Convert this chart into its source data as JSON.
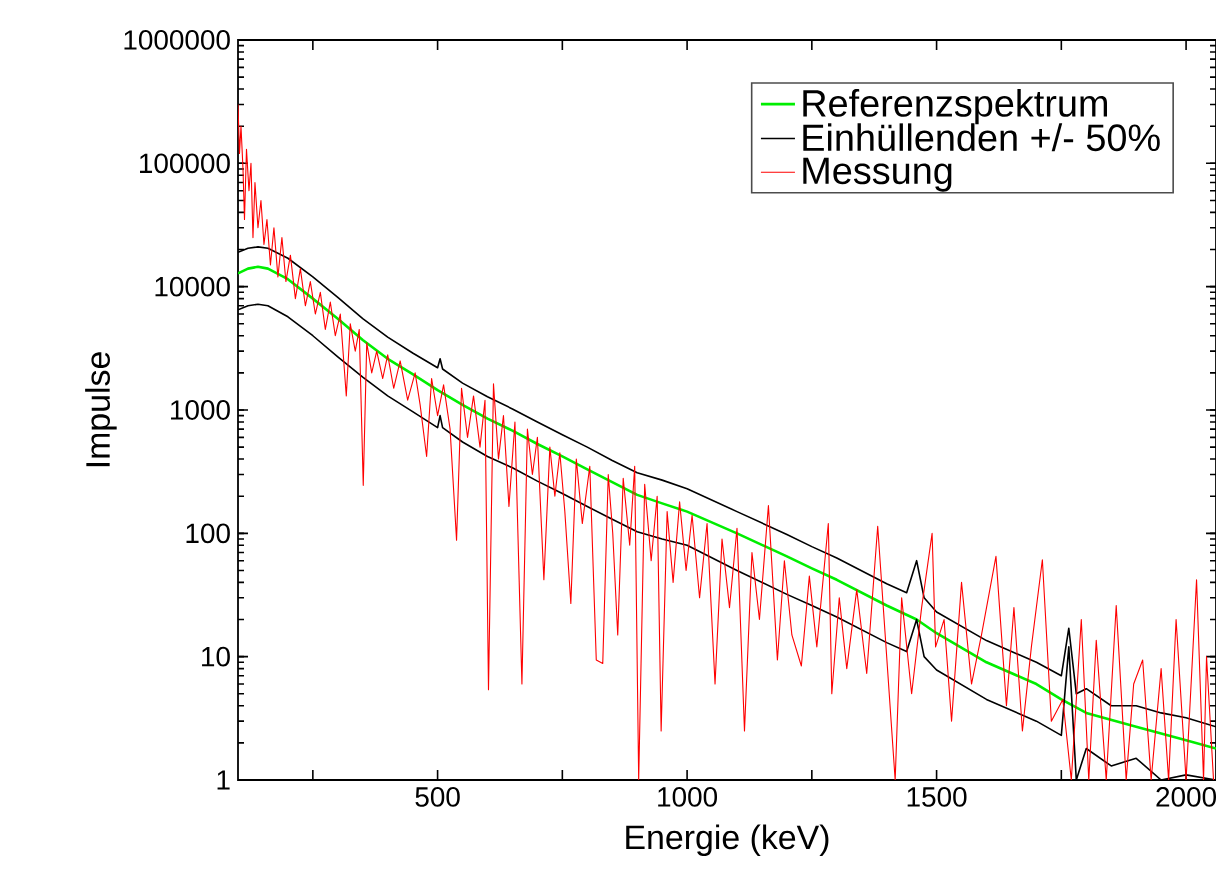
{
  "chart_data": {
    "type": "line",
    "xlabel": "Energie (keV)",
    "ylabel": "Impulse",
    "xlim": [
      100,
      2060
    ],
    "ylim": [
      1,
      1000000
    ],
    "log": "y",
    "legend": "top right",
    "marker": "none",
    "line_style": "solid",
    "xticks": [
      {
        "value": 250,
        "label": null
      },
      500,
      {
        "value": 750,
        "label": null
      },
      1000,
      {
        "value": 1250,
        "label": null
      },
      1500,
      {
        "value": 1750,
        "label": null
      },
      2000
    ],
    "yticks": [
      1,
      10,
      100,
      1000,
      10000,
      100000,
      1000000
    ],
    "series": [
      {
        "name": "Referenzspektrum",
        "color": "#00ee00",
        "x": [
          100,
          120,
          140,
          160,
          200,
          250,
          300,
          350,
          400,
          450,
          500,
          550,
          600,
          650,
          700,
          750,
          800,
          850,
          900,
          950,
          1000,
          1100,
          1200,
          1250,
          1300,
          1400,
          1460,
          1500,
          1600,
          1700,
          1750,
          1800,
          1900,
          2000,
          2060
        ],
        "values": [
          12800,
          14000,
          14500,
          14000,
          11500,
          8000,
          5500,
          3700,
          2600,
          1950,
          1450,
          1100,
          850,
          680,
          530,
          420,
          330,
          260,
          205,
          175,
          150,
          100,
          65,
          52,
          42,
          26,
          20,
          15.5,
          9,
          6,
          4.5,
          3.5,
          2.7,
          2.1,
          1.8
        ]
      },
      {
        "name": "Einhüllenden +/- 50%",
        "color": "#000000",
        "x": [
          100,
          120,
          140,
          160,
          200,
          250,
          300,
          350,
          400,
          450,
          500,
          505,
          510,
          550,
          600,
          650,
          700,
          750,
          800,
          850,
          900,
          950,
          1000,
          1100,
          1200,
          1250,
          1300,
          1400,
          1440,
          1460,
          1475,
          1500,
          1600,
          1700,
          1750,
          1765,
          1780,
          1800,
          1850,
          1900,
          1950,
          2000,
          2060
        ],
        "values": [
          19000,
          20500,
          21000,
          20500,
          17000,
          12000,
          8200,
          5500,
          3900,
          2900,
          2200,
          2600,
          2150,
          1650,
          1280,
          1020,
          800,
          630,
          500,
          390,
          310,
          270,
          230,
          150,
          98,
          78,
          63,
          39,
          33,
          60,
          30,
          23,
          13.5,
          9,
          7,
          17,
          5,
          5.5,
          4,
          4,
          3.5,
          3.2,
          2.7
        ]
      },
      {
        "color": "#000000",
        "x": [
          100,
          120,
          140,
          160,
          200,
          250,
          300,
          350,
          400,
          450,
          500,
          505,
          510,
          550,
          600,
          650,
          700,
          750,
          800,
          850,
          900,
          950,
          1000,
          1100,
          1200,
          1250,
          1300,
          1400,
          1440,
          1460,
          1475,
          1500,
          1600,
          1700,
          1750,
          1765,
          1780,
          1800,
          1850,
          1900,
          1950,
          2000,
          2060
        ],
        "values": [
          6500,
          7000,
          7200,
          7000,
          5700,
          4000,
          2700,
          1850,
          1300,
          970,
          720,
          900,
          720,
          550,
          420,
          340,
          265,
          210,
          165,
          130,
          103,
          90,
          80,
          50,
          32,
          26,
          21,
          13,
          11,
          20,
          10,
          7.8,
          4.5,
          3,
          2.3,
          12,
          1,
          1.8,
          1.3,
          1.5,
          1,
          1.1,
          1
        ]
      },
      {
        "name": "Messung",
        "color": "#ff0000",
        "x": [
          100,
          103,
          106,
          110,
          113,
          117,
          122,
          126,
          130,
          134,
          140,
          146,
          152,
          158,
          165,
          172,
          180,
          188,
          196,
          205,
          215,
          225,
          235,
          245,
          255,
          265,
          275,
          285,
          295,
          305,
          317,
          325,
          335,
          343,
          351,
          358,
          368,
          378,
          390,
          400,
          412,
          425,
          440,
          455,
          465,
          478,
          488,
          500,
          512,
          525,
          538,
          548,
          560,
          572,
          585,
          595,
          602,
          612,
          622,
          632,
          643,
          655,
          669,
          680,
          690,
          700,
          713,
          725,
          735,
          745,
          755,
          767,
          778,
          790,
          805,
          818,
          831,
          842,
          851,
          861,
          872,
          885,
          895,
          903,
          915,
          928,
          940,
          948,
          960,
          972,
          985,
          998,
          1010,
          1025,
          1040,
          1056,
          1070,
          1085,
          1100,
          1115,
          1130,
          1145,
          1163,
          1181,
          1195,
          1210,
          1229,
          1245,
          1260,
          1283,
          1290,
          1305,
          1320,
          1340,
          1360,
          1382,
          1400,
          1417,
          1430,
          1450,
          1470,
          1491,
          1498,
          1515,
          1530,
          1550,
          1570,
          1590,
          1619,
          1640,
          1655,
          1672,
          1690,
          1712,
          1730,
          1753,
          1770,
          1790,
          1805,
          1820,
          1840,
          1860,
          1880,
          1895,
          1913,
          1930,
          1950,
          1965,
          1980,
          2000,
          2021,
          2035,
          2041,
          2055
        ],
        "values": [
          300000,
          120000,
          200000,
          90000,
          35000,
          130000,
          60000,
          100000,
          25000,
          70000,
          30000,
          50000,
          22000,
          35000,
          15000,
          30000,
          12000,
          25000,
          11000,
          18000,
          8000,
          14000,
          7000,
          11000,
          6000,
          9000,
          4500,
          7500,
          4000,
          6000,
          1300,
          5000,
          3000,
          4500,
          245,
          3500,
          2000,
          3000,
          1800,
          2800,
          1500,
          2500,
          1200,
          2000,
          1100,
          420,
          1800,
          900,
          1600,
          700,
          88,
          1500,
          600,
          1300,
          500,
          1200,
          5.4,
          1630,
          400,
          900,
          165,
          800,
          6,
          700,
          300,
          600,
          42,
          500,
          200,
          450,
          150,
          27,
          400,
          120,
          350,
          9.4,
          8.8,
          300,
          100,
          15,
          280,
          80,
          350,
          1,
          250,
          60,
          200,
          2.5,
          150,
          40,
          180,
          50,
          140,
          30,
          120,
          6,
          90,
          25,
          110,
          2.5,
          70,
          20,
          168,
          9.4,
          60,
          15,
          8.4,
          45,
          12,
          120,
          5,
          30,
          8,
          35,
          7.3,
          114,
          10,
          1,
          30,
          5,
          25,
          100,
          12,
          20,
          3,
          40,
          6,
          15,
          65,
          4,
          25,
          2.5,
          12,
          61,
          3,
          4.5,
          1,
          20,
          1,
          13.6,
          1,
          26,
          1,
          6,
          9.4,
          1,
          8,
          1,
          20,
          1,
          42,
          1,
          10,
          1
        ]
      }
    ]
  }
}
